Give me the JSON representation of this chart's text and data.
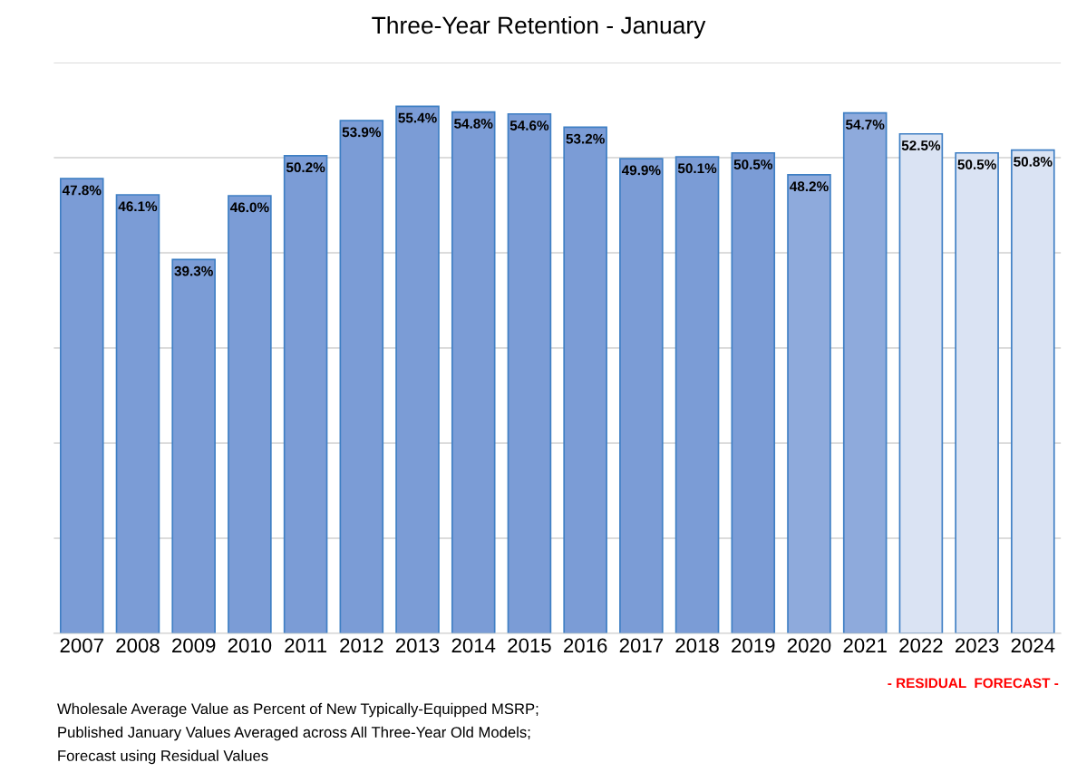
{
  "chart_data": {
    "type": "bar",
    "title": "Three-Year Retention - January",
    "categories": [
      "2007",
      "2008",
      "2009",
      "2010",
      "2011",
      "2012",
      "2013",
      "2014",
      "2015",
      "2016",
      "2017",
      "2018",
      "2019",
      "2020",
      "2021",
      "2022",
      "2023",
      "2024"
    ],
    "values": [
      47.8,
      46.1,
      39.3,
      46.0,
      50.2,
      53.9,
      55.4,
      54.8,
      54.6,
      53.2,
      49.9,
      50.1,
      50.5,
      48.2,
      54.7,
      52.5,
      50.5,
      50.8
    ],
    "value_labels": [
      "47.8%",
      "46.1%",
      "39.3%",
      "46.0%",
      "50.2%",
      "53.9%",
      "55.4%",
      "54.8%",
      "54.6%",
      "53.2%",
      "49.9%",
      "50.1%",
      "50.5%",
      "48.2%",
      "54.7%",
      "52.5%",
      "50.5%",
      "50.8%"
    ],
    "colors": [
      "#7b9cd6",
      "#7b9cd6",
      "#7b9cd6",
      "#7b9cd6",
      "#7b9cd6",
      "#7b9cd6",
      "#7b9cd6",
      "#7b9cd6",
      "#7b9cd6",
      "#7b9cd6",
      "#7b9cd6",
      "#7b9cd6",
      "#7b9cd6",
      "#8eaadc",
      "#8eaadc",
      "#dae3f3",
      "#dae3f3",
      "#dae3f3"
    ],
    "ylim": [
      0,
      60
    ],
    "yticks": [
      {
        "value": 0,
        "label": null
      },
      {
        "value": 10,
        "label": null
      },
      {
        "value": 20,
        "label": null
      },
      {
        "value": 30,
        "label": null
      },
      {
        "value": 40,
        "label": null
      },
      {
        "value": 50,
        "label": null
      },
      {
        "value": 60,
        "label": null
      }
    ],
    "tick_labels": "x",
    "grid": "y",
    "annotations": [
      "- RESIDUAL  FORECAST -",
      "Wholesale Average Value as Percent of New Typically-Equipped MSRP;",
      "Published January Values Averaged across All Three-Year Old Models;",
      "Forecast using Residual Values"
    ]
  }
}
